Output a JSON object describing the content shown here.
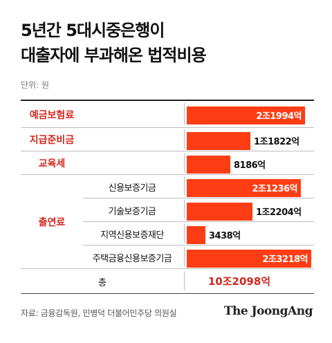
{
  "title": {
    "line1": "5년간 5대시중은행이",
    "line2": "대출자에 부과해온 법적비용"
  },
  "unit": "단위: 원",
  "colors": {
    "bar": "#ff3d14",
    "accent_text": "#d2281d",
    "label_on_bar": "#ffffff",
    "label_off_bar": "#111111"
  },
  "chart_data": {
    "type": "bar",
    "title": "5년간 5대시중은행이 대출자에 부과해온 법적비용",
    "unit": "원",
    "rows": [
      {
        "category": "예금보험료",
        "label": "",
        "value": 21994,
        "value_label": "2조1994억"
      },
      {
        "category": "지급준비금",
        "label": "",
        "value": 11822,
        "value_label": "1조1822억"
      },
      {
        "category": "교육세",
        "label": "",
        "value": 8186,
        "value_label": "8186억"
      },
      {
        "category": "출연료",
        "label": "신용보증기금",
        "value": 21236,
        "value_label": "2조1236억"
      },
      {
        "category": "출연료",
        "label": "기술보증기금",
        "value": 12204,
        "value_label": "1조2204억"
      },
      {
        "category": "출연료",
        "label": "지역신용보증재단",
        "value": 3438,
        "value_label": "3438억"
      },
      {
        "category": "출연료",
        "label": "주택금융신용보증기금",
        "value": 23218,
        "value_label": "2조3218억"
      }
    ],
    "value_unit": "억원",
    "xlim": [
      0,
      23218
    ],
    "total": {
      "label": "총",
      "value_label": "10조2098억"
    }
  },
  "categories": {
    "deposit_insurance": "예금보험료",
    "reserve": "지급준비금",
    "education_tax": "교육세",
    "contribution": "출연료"
  },
  "source": "자료: 금융감독원, 민병덕 더불어민주당 의원실",
  "logo": "The JoongAng"
}
